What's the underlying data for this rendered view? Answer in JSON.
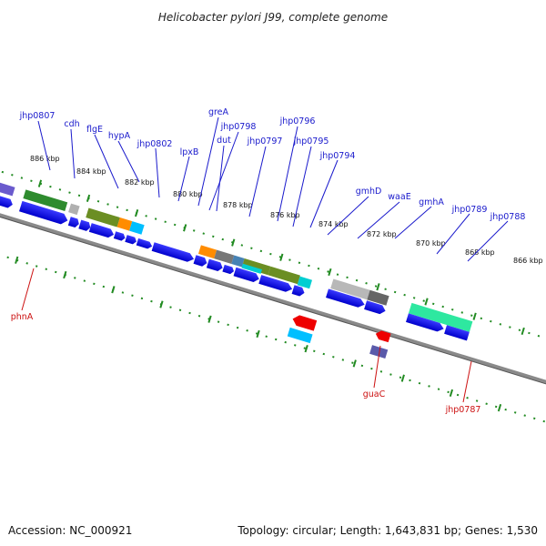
{
  "title": "Helicobacter pylori J99, complete genome",
  "footer": {
    "accession": "Accession: NC_000921",
    "summary": "Topology: circular; Length: 1,643,831 bp; Genes: 1,530"
  },
  "colors": {
    "forward_label": "#1a1acc",
    "reverse_label": "#cc1111",
    "tick": "#228B22",
    "backbone": "#8a8a8a"
  },
  "kbp_labels": [
    "886 kbp",
    "884 kbp",
    "882 kbp",
    "880 kbp",
    "878 kbp",
    "876 kbp",
    "874 kbp",
    "872 kbp",
    "870 kbp",
    "868 kbp",
    "866 kbp"
  ],
  "forward_genes": [
    "jhp0807",
    "cdh",
    "flgE",
    "hypA",
    "jhp0802",
    "lpxB",
    "greA",
    "jhp0798",
    "dut",
    "jhp0797",
    "jhp0796",
    "jhp0795",
    "jhp0794",
    "gmhD",
    "waaE",
    "gmhA",
    "jhp0789",
    "jhp0788"
  ],
  "reverse_genes": [
    "phnA",
    "guaC",
    "jhp0787"
  ]
}
